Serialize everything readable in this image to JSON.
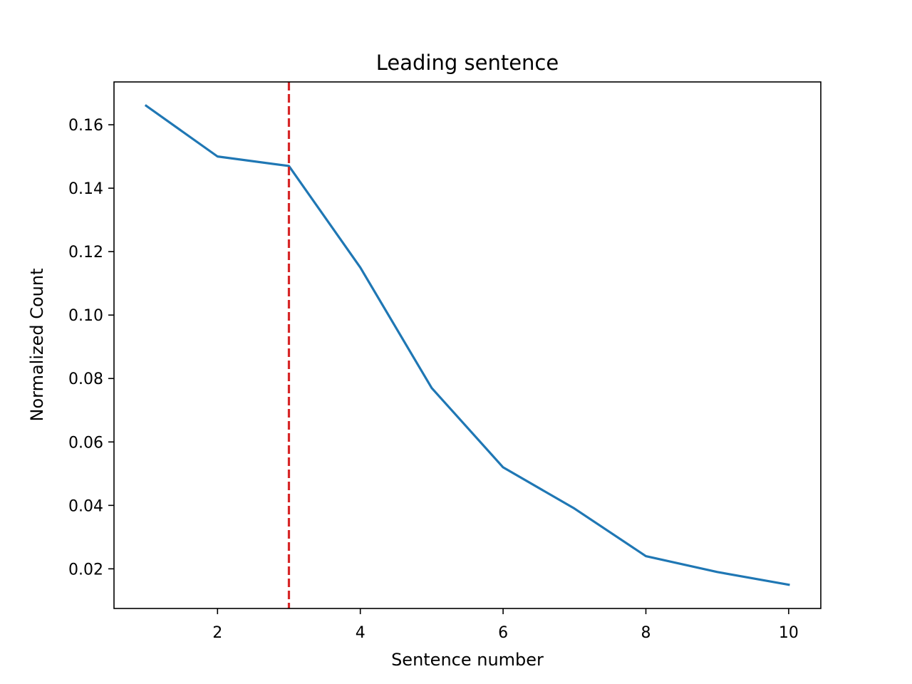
{
  "chart_data": {
    "type": "line",
    "title": "Leading sentence",
    "xlabel": "Sentence number",
    "ylabel": "Normalized Count",
    "xlim": [
      0.55,
      10.45
    ],
    "ylim": [
      0.0075,
      0.1735
    ],
    "xticks": [
      2,
      4,
      6,
      8,
      10
    ],
    "xtick_labels": [
      "2",
      "4",
      "6",
      "8",
      "10"
    ],
    "yticks": [
      0.02,
      0.04,
      0.06,
      0.08,
      0.1,
      0.12,
      0.14,
      0.16
    ],
    "ytick_labels": [
      "0.02",
      "0.04",
      "0.06",
      "0.08",
      "0.10",
      "0.12",
      "0.14",
      "0.16"
    ],
    "grid": false,
    "series": [
      {
        "x": [
          1,
          2,
          3,
          4,
          5,
          6,
          7,
          8,
          9,
          10
        ],
        "values": [
          0.166,
          0.15,
          0.147,
          0.115,
          0.077,
          0.052,
          0.039,
          0.024,
          0.019,
          0.015
        ],
        "color": "#1f77b4"
      }
    ],
    "reference_lines": [
      {
        "orientation": "vertical",
        "x": 3,
        "style": "dashed",
        "color": "#d62728"
      }
    ]
  }
}
